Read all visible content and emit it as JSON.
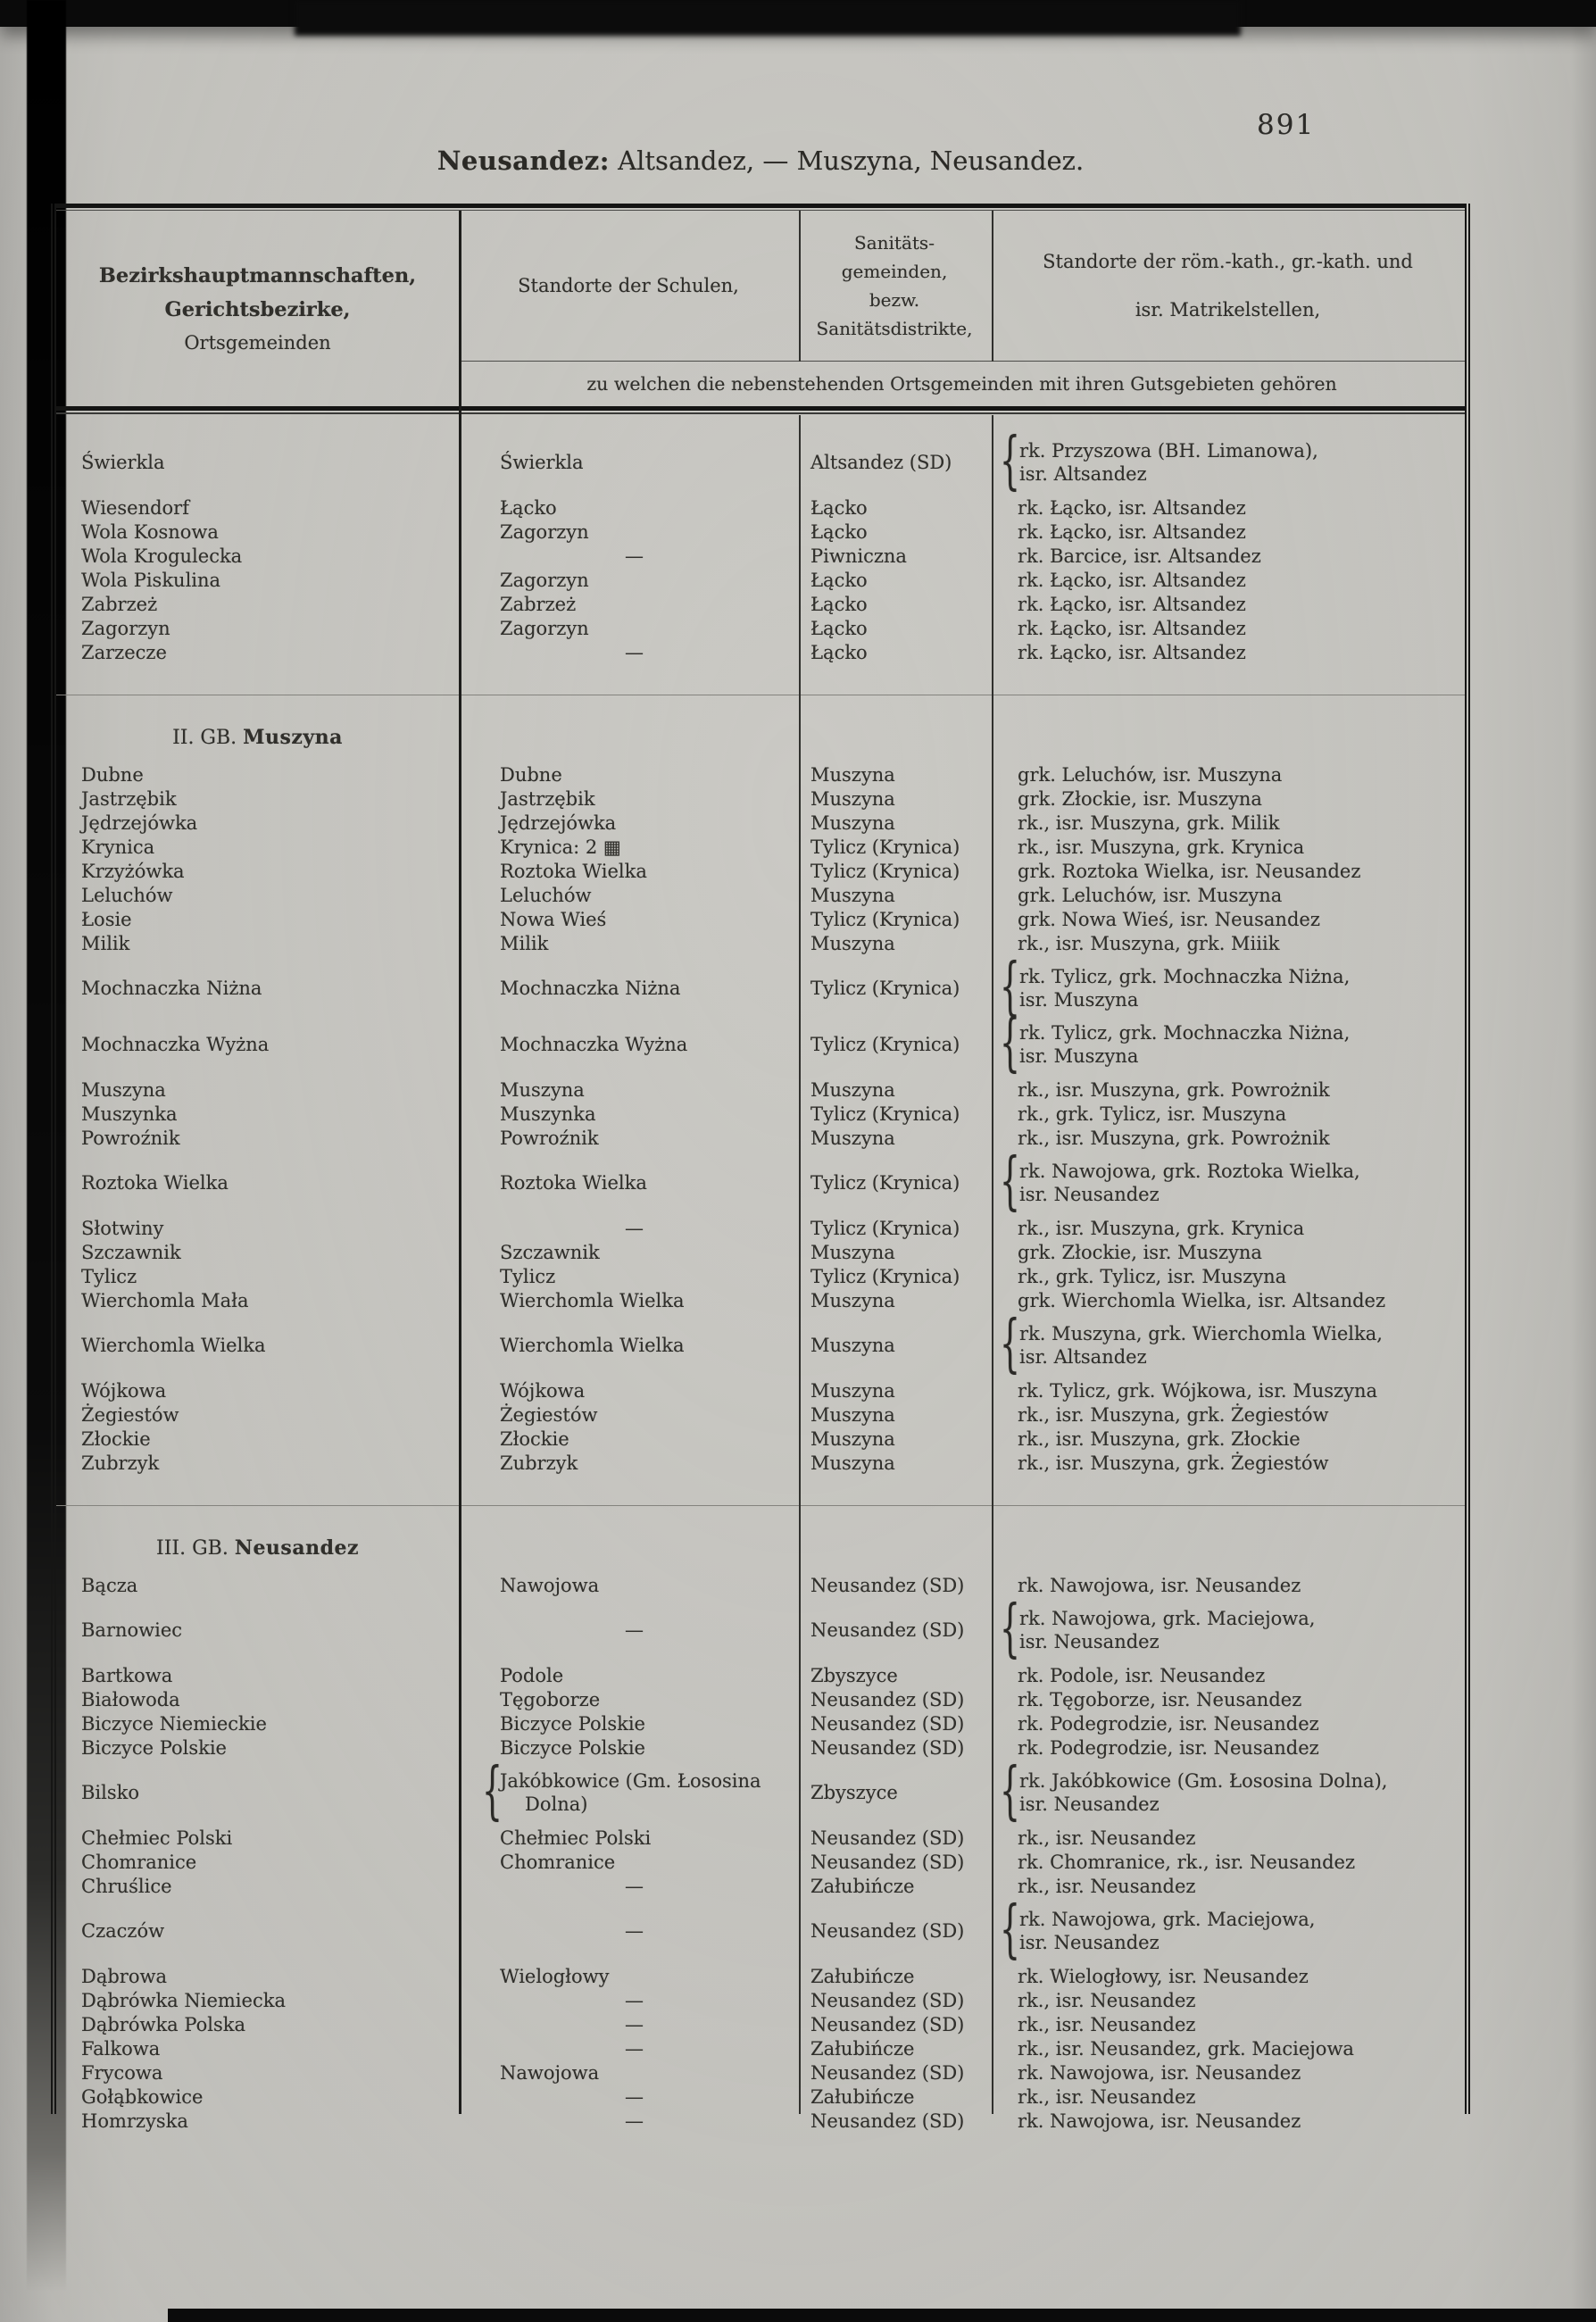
{
  "page": {
    "number": "891",
    "title_bold": "Neusandez:",
    "title_rest": " Altsandez, — Muszyna, Neusandez."
  },
  "table": {
    "headers": {
      "col1_lines": [
        "Bezirkshauptmannschaften,",
        "Gerichtsbezirke,",
        "Ortsgemeinden"
      ],
      "col2": "Standorte der Schulen,",
      "col3_lines": [
        "Sanitäts-",
        "gemeinden,",
        "bezw.",
        "Sanitätsdistrikte,"
      ],
      "col4_lines": [
        "Standorte der röm.-kath., gr.-kath. und",
        "isr. Matrikelstellen,"
      ],
      "span_note": "zu welchen die nebenstehenden Ortsgemeinden mit ihren Gutsgebieten gehören"
    },
    "sections": [
      {
        "heading": null,
        "rows": [
          {
            "c1": "Świerkla",
            "c2": "Świerkla",
            "c3": "Altsandez (SD)",
            "c4_lines": [
              "rk. Przyszowa (BH. Limanowa),",
              "isr. Altsandez"
            ],
            "brace4": true
          },
          {
            "c1": "Wiesendorf",
            "c2": "Łącko",
            "c3": "Łącko",
            "c4": "rk. Łącko, isr. Altsandez",
            "gap": true
          },
          {
            "c1": "Wola Kosnowa",
            "c2": "Zagorzyn",
            "c3": "Łącko",
            "c4": "rk. Łącko, isr. Altsandez"
          },
          {
            "c1": "Wola Krogulecka",
            "c2": "—",
            "c3": "Piwniczna",
            "c4": "rk. Barcice, isr. Altsandez"
          },
          {
            "c1": "Wola Piskulina",
            "c2": "Zagorzyn",
            "c3": "Łącko",
            "c4": "rk. Łącko, isr. Altsandez"
          },
          {
            "c1": "Zabrzeż",
            "c2": "Zabrzeż",
            "c3": "Łącko",
            "c4": "rk. Łącko, isr. Altsandez"
          },
          {
            "c1": "Zagorzyn",
            "c2": "Zagorzyn",
            "c3": "Łącko",
            "c4": "rk. Łącko, isr. Altsandez"
          },
          {
            "c1": "Zarzecze",
            "c2": "—",
            "c3": "Łącko",
            "c4": "rk. Łącko, isr. Altsandez"
          }
        ]
      },
      {
        "heading": {
          "prefix": "II. GB. ",
          "name": "Muszyna"
        },
        "rows": [
          {
            "c1": "Dubne",
            "c2": "Dubne",
            "c3": "Muszyna",
            "c4": "grk. Leluchów, isr. Muszyna"
          },
          {
            "c1": "Jastrzębik",
            "c2": "Jastrzębik",
            "c3": "Muszyna",
            "c4": "grk. Złockie, isr. Muszyna"
          },
          {
            "c1": "Jędrzejówka",
            "c2": "Jędrzejówka",
            "c3": "Muszyna",
            "c4": "rk., isr. Muszyna, grk. Milik"
          },
          {
            "c1": "Krynica",
            "c2": "Krynica: 2 ▦",
            "c3": "Tylicz (Krynica)",
            "c4": "rk., isr. Muszyna, grk. Krynica"
          },
          {
            "c1": "Krzyżówka",
            "c2": "Roztoka Wielka",
            "c3": "Tylicz (Krynica)",
            "c4": "grk. Roztoka Wielka, isr. Neusandez"
          },
          {
            "c1": "Leluchów",
            "c2": "Leluchów",
            "c3": "Muszyna",
            "c4": "grk. Leluchów, isr. Muszyna"
          },
          {
            "c1": "Łosie",
            "c2": "Nowa Wieś",
            "c3": "Tylicz (Krynica)",
            "c4": "grk. Nowa Wieś, isr. Neusandez"
          },
          {
            "c1": "Milik",
            "c2": "Milik",
            "c3": "Muszyna",
            "c4": "rk., isr. Muszyna, grk. Miiik"
          },
          {
            "c1": "Mochnaczka Niżna",
            "c2": "Mochnaczka Niżna",
            "c3": "Tylicz (Krynica)",
            "c4_lines": [
              "rk. Tylicz, grk. Mochnaczka Niżna,",
              "isr. Muszyna"
            ],
            "brace4": true,
            "gap": true
          },
          {
            "c1": "Mochnaczka Wyżna",
            "c2": "Mochnaczka Wyżna",
            "c3": "Tylicz (Krynica)",
            "c4_lines": [
              "rk. Tylicz, grk. Mochnaczka Niżna,",
              "isr. Muszyna"
            ],
            "brace4": true,
            "gap": true
          },
          {
            "c1": "Muszyna",
            "c2": "Muszyna",
            "c3": "Muszyna",
            "c4": "rk., isr. Muszyna, grk. Powrożnik",
            "gap": true
          },
          {
            "c1": "Muszynka",
            "c2": "Muszynka",
            "c3": "Tylicz (Krynica)",
            "c4": "rk., grk. Tylicz, isr. Muszyna"
          },
          {
            "c1": "Powroźnik",
            "c2": "Powroźnik",
            "c3": "Muszyna",
            "c4": "rk., isr. Muszyna, grk. Powrożnik"
          },
          {
            "c1": "Roztoka Wielka",
            "c2": "Roztoka Wielka",
            "c3": "Tylicz (Krynica)",
            "c4_lines": [
              "rk. Nawojowa, grk. Roztoka Wielka,",
              "isr. Neusandez"
            ],
            "brace4": true,
            "gap": true
          },
          {
            "c1": "Słotwiny",
            "c2": "—",
            "c3": "Tylicz (Krynica)",
            "c4": "rk., isr. Muszyna, grk. Krynica",
            "gap": true
          },
          {
            "c1": "Szczawnik",
            "c2": "Szczawnik",
            "c3": "Muszyna",
            "c4": "grk. Złockie, isr. Muszyna"
          },
          {
            "c1": "Tylicz",
            "c2": "Tylicz",
            "c3": "Tylicz (Krynica)",
            "c4": "rk., grk. Tylicz, isr. Muszyna"
          },
          {
            "c1": "Wierchomla Mała",
            "c2": "Wierchomla Wielka",
            "c3": "Muszyna",
            "c4": "grk. Wierchomla Wielka, isr. Altsandez"
          },
          {
            "c1": "Wierchomla Wielka",
            "c2": "Wierchomla Wielka",
            "c3": "Muszyna",
            "c4_lines": [
              "rk. Muszyna, grk. Wierchomla Wielka,",
              "isr. Altsandez"
            ],
            "brace4": true,
            "gap": true
          },
          {
            "c1": "Wójkowa",
            "c2": "Wójkowa",
            "c3": "Muszyna",
            "c4": "rk. Tylicz, grk. Wójkowa, isr. Muszyna",
            "gap": true
          },
          {
            "c1": "Żegiestów",
            "c2": "Żegiestów",
            "c3": "Muszyna",
            "c4": "rk., isr. Muszyna, grk. Żegiestów"
          },
          {
            "c1": "Złockie",
            "c2": "Złockie",
            "c3": "Muszyna",
            "c4": "rk., isr. Muszyna, grk. Złockie"
          },
          {
            "c1": "Zubrzyk",
            "c2": "Zubrzyk",
            "c3": "Muszyna",
            "c4": "rk., isr. Muszyna, grk. Żegiestów"
          }
        ]
      },
      {
        "heading": {
          "prefix": "III. GB. ",
          "name": "Neusandez"
        },
        "rows": [
          {
            "c1": "Bącza",
            "c2": "Nawojowa",
            "c3": "Neusandez (SD)",
            "c4": "rk. Nawojowa, isr. Neusandez"
          },
          {
            "c1": "Barnowiec",
            "c2": "—",
            "c3": "Neusandez (SD)",
            "c4_lines": [
              "rk. Nawojowa, grk. Maciejowa,",
              "isr. Neusandez"
            ],
            "brace4": true,
            "gap": true
          },
          {
            "c1": "Bartkowa",
            "c2": "Podole",
            "c3": "Zbyszyce",
            "c4": "rk. Podole, isr. Neusandez",
            "gap": true
          },
          {
            "c1": "Białowoda",
            "c2": "Tęgoborze",
            "c3": "Neusandez (SD)",
            "c4": "rk. Tęgoborze, isr. Neusandez"
          },
          {
            "c1": "Biczyce Niemieckie",
            "c2": "Biczyce Polskie",
            "c3": "Neusandez (SD)",
            "c4": "rk. Podegrodzie, isr. Neusandez"
          },
          {
            "c1": "Biczyce Polskie",
            "c2": "Biczyce Polskie",
            "c3": "Neusandez (SD)",
            "c4": "rk. Podegrodzie, isr. Neusandez"
          },
          {
            "c1": "Bilsko",
            "c2_lines": [
              "Jakóbkowice (Gm. Łososina",
              "Dolna)"
            ],
            "brace2": true,
            "c3": "Zbyszyce",
            "c4_lines": [
              "rk. Jakóbkowice (Gm. Łososina Dolna),",
              "isr. Neusandez"
            ],
            "brace4": true,
            "gap": true
          },
          {
            "c1": "Chełmiec Polski",
            "c2": "Chełmiec Polski",
            "c3": "Neusandez (SD)",
            "c4": "rk., isr. Neusandez",
            "gap": true
          },
          {
            "c1": "Chomranice",
            "c2": "Chomranice",
            "c3": "Neusandez (SD)",
            "c4": "rk. Chomranice, rk., isr. Neusandez"
          },
          {
            "c1": "Chruślice",
            "c2": "—",
            "c3": "Załubińcze",
            "c4": "rk., isr. Neusandez"
          },
          {
            "c1": "Czaczów",
            "c2": "—",
            "c3": "Neusandez (SD)",
            "c4_lines": [
              "rk. Nawojowa, grk. Maciejowa,",
              "isr. Neusandez"
            ],
            "brace4": true,
            "gap": true
          },
          {
            "c1": "Dąbrowa",
            "c2": "Wielogłowy",
            "c3": "Załubińcze",
            "c4": "rk. Wielogłowy, isr. Neusandez",
            "gap": true
          },
          {
            "c1": "Dąbrówka Niemiecka",
            "c2": "—",
            "c3": "Neusandez (SD)",
            "c4": "rk., isr. Neusandez"
          },
          {
            "c1": "Dąbrówka Polska",
            "c2": "—",
            "c3": "Neusandez (SD)",
            "c4": "rk., isr. Neusandez"
          },
          {
            "c1": "Falkowa",
            "c2": "—",
            "c3": "Załubińcze",
            "c4": "rk., isr. Neusandez, grk. Maciejowa"
          },
          {
            "c1": "Frycowa",
            "c2": "Nawojowa",
            "c3": "Neusandez (SD)",
            "c4": "rk. Nawojowa, isr. Neusandez"
          },
          {
            "c1": "Gołąbkowice",
            "c2": "—",
            "c3": "Załubińcze",
            "c4": "rk., isr. Neusandez"
          },
          {
            "c1": "Homrzyska",
            "c2": "—",
            "c3": "Neusandez (SD)",
            "c4": "rk. Nawojowa, isr. Neusandez"
          }
        ]
      }
    ]
  }
}
